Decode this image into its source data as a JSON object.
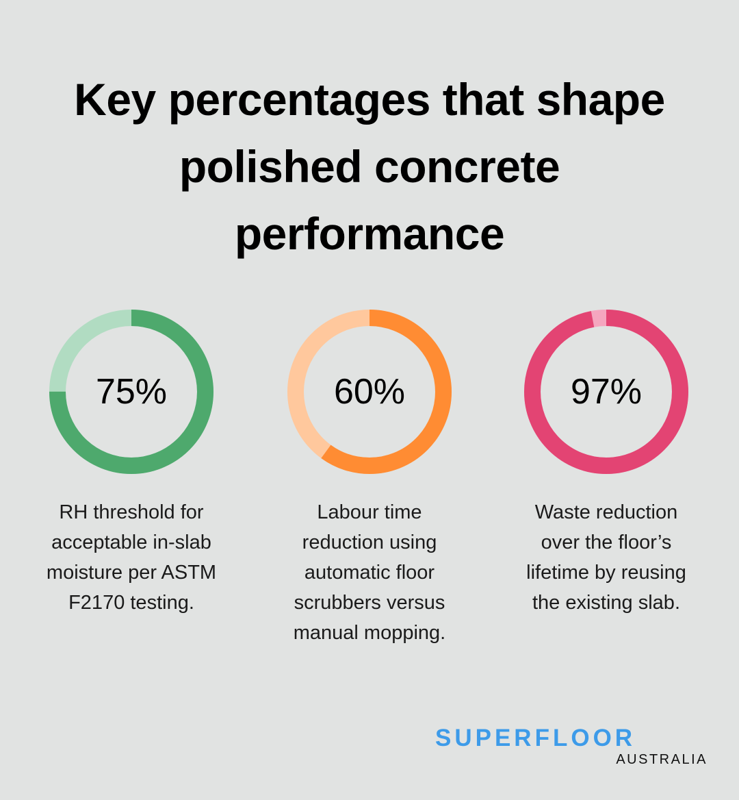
{
  "title": {
    "lines": [
      "Key percentages that shape",
      "polished concrete",
      "performance"
    ]
  },
  "stats": [
    {
      "value": "75%",
      "percent": 75,
      "color": "#4ea96d",
      "track_color": "#b1dcc2",
      "description_lines": [
        "RH threshold for",
        "acceptable in-slab",
        "moisture per ASTM",
        "F2170 testing."
      ]
    },
    {
      "value": "60%",
      "percent": 60,
      "color": "#ff8c33",
      "track_color": "#ffc89d",
      "description_lines": [
        "Labour time",
        "reduction using",
        "automatic floor",
        "scrubbers versus",
        "manual mopping."
      ]
    },
    {
      "value": "97%",
      "percent": 97,
      "color": "#e34473",
      "track_color": "#f5a6bf",
      "description_lines": [
        "Waste reduction",
        "over the floor’s",
        "lifetime by reusing",
        "the existing slab."
      ]
    }
  ],
  "logo": {
    "brand": "SUPERFLOOR",
    "sub": "AUSTRALIA"
  },
  "chart_data": {
    "type": "pie",
    "title": "Key percentages that shape polished concrete performance",
    "categories": [
      "RH threshold for acceptable in-slab moisture per ASTM F2170 testing.",
      "Labour time reduction using automatic floor scrubbers versus manual mopping.",
      "Waste reduction over the floor’s lifetime by reusing the existing slab."
    ],
    "values": [
      75,
      60,
      97
    ],
    "unit": "%",
    "style": "donut progress rings",
    "colors": [
      "#4ea96d",
      "#ff8c33",
      "#e34473"
    ]
  }
}
